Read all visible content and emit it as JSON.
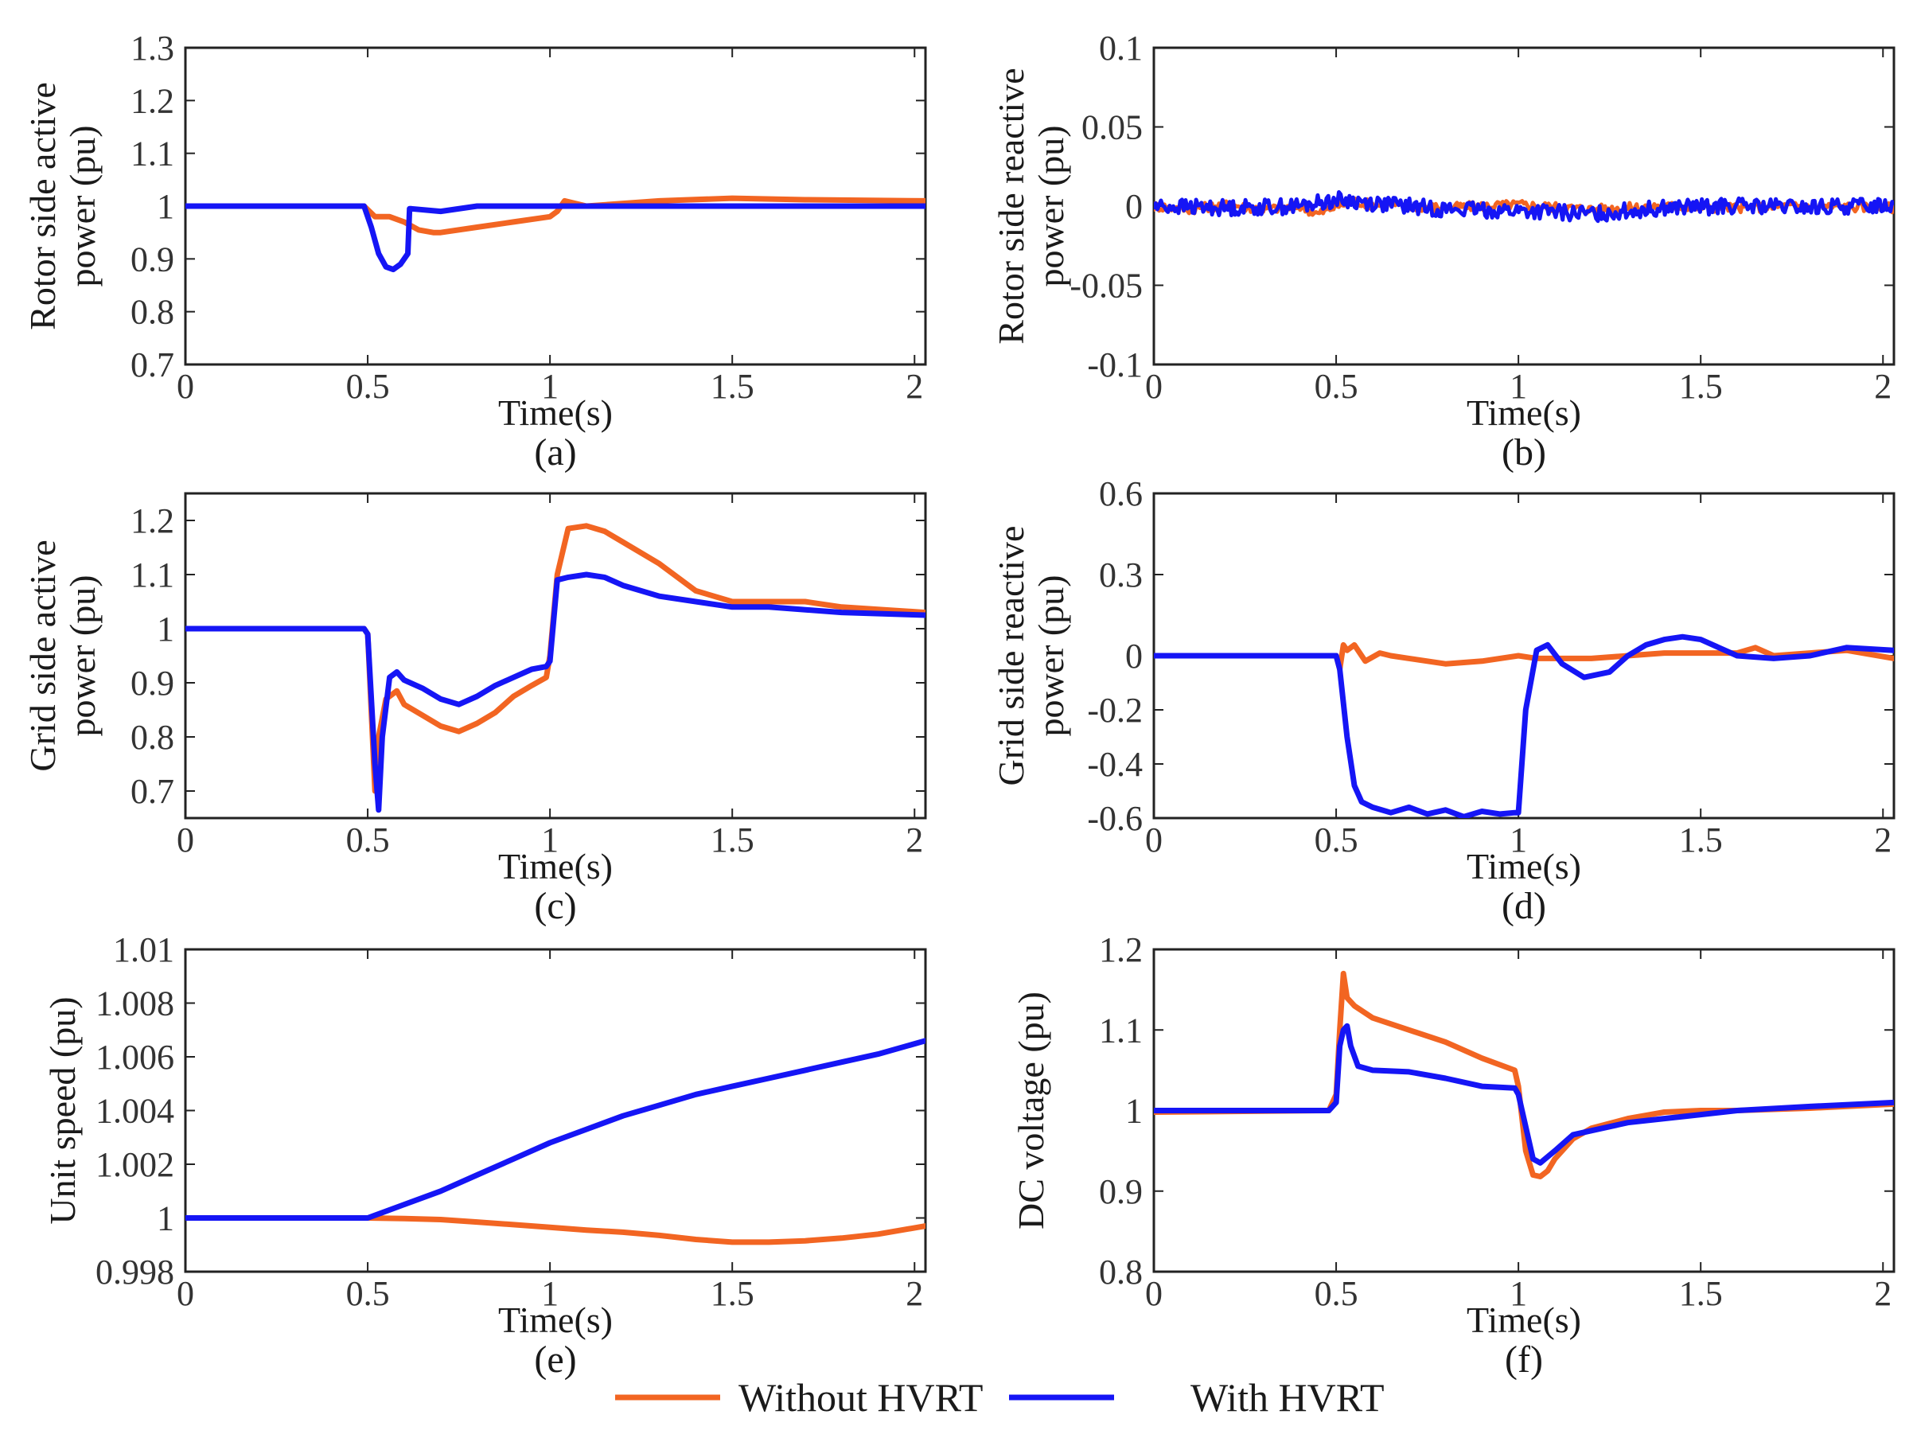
{
  "colors": {
    "without": "#F26522",
    "with": "#1515F5",
    "axis": "#222222"
  },
  "legend": {
    "without_label": "Without HVRT",
    "with_label": "With HVRT"
  },
  "chart_data": [
    {
      "id": "a",
      "type": "line",
      "caption": "(a)",
      "xlabel": "Time(s)",
      "ylabel_lines": [
        "Rotor side active",
        "power (pu)"
      ],
      "xlim": [
        0,
        2.03
      ],
      "ylim": [
        0.7,
        1.3
      ],
      "xticks": [
        0,
        0.5,
        1,
        1.5,
        2
      ],
      "xtick_labels": [
        "0",
        "0.5",
        "1",
        "1.5",
        "2"
      ],
      "yticks": [
        0.7,
        0.8,
        0.9,
        1,
        1.1,
        1.2,
        1.3
      ],
      "ytick_labels": [
        "0.7",
        "0.8",
        "0.9",
        "1",
        "1.1",
        "1.2",
        "1.3"
      ],
      "series": [
        {
          "name": "Without HVRT",
          "x": [
            0,
            0.49,
            0.52,
            0.56,
            0.6,
            0.64,
            0.68,
            0.7,
            0.8,
            0.9,
            1.0,
            1.02,
            1.04,
            1.1,
            1.3,
            1.5,
            1.7,
            2.03
          ],
          "y": [
            1.0,
            1.0,
            0.98,
            0.98,
            0.97,
            0.955,
            0.95,
            0.95,
            0.96,
            0.97,
            0.98,
            0.99,
            1.01,
            1.0,
            1.01,
            1.015,
            1.012,
            1.01
          ]
        },
        {
          "name": "With HVRT",
          "x": [
            0,
            0.49,
            0.51,
            0.53,
            0.55,
            0.57,
            0.59,
            0.61,
            0.615,
            0.62,
            0.7,
            0.8,
            1.0,
            1.5,
            2.03
          ],
          "y": [
            1.0,
            1.0,
            0.96,
            0.91,
            0.885,
            0.88,
            0.89,
            0.91,
            0.995,
            0.995,
            0.99,
            1.0,
            1.0,
            1.0,
            1.0
          ]
        }
      ]
    },
    {
      "id": "b",
      "type": "line",
      "caption": "(b)",
      "xlabel": "Time(s)",
      "ylabel_lines": [
        "Rotor side reactive",
        "power (pu)"
      ],
      "xlim": [
        0,
        2.03
      ],
      "ylim": [
        -0.1,
        0.1
      ],
      "xticks": [
        0,
        0.5,
        1,
        1.5,
        2
      ],
      "xtick_labels": [
        "0",
        "0.5",
        "1",
        "1.5",
        "2"
      ],
      "yticks": [
        -0.1,
        -0.05,
        0,
        0.05,
        0.1
      ],
      "ytick_labels": [
        "-0.1",
        "-0.05",
        "0",
        "0.05",
        "0.1"
      ],
      "series": [
        {
          "name": "Without HVRT",
          "x": [
            0,
            0.1,
            0.2,
            0.3,
            0.4,
            0.45,
            0.5,
            0.55,
            0.6,
            0.8,
            1.0,
            1.2,
            1.4,
            1.6,
            1.8,
            2.03
          ],
          "y": [
            0.0,
            -0.002,
            0.001,
            -0.002,
            0.0,
            -0.005,
            0.0,
            0.003,
            0.001,
            -0.001,
            0.001,
            -0.002,
            0.0,
            -0.001,
            0.0,
            -0.001
          ],
          "noise": 0.003
        },
        {
          "name": "With HVRT",
          "x": [
            0,
            0.2,
            0.4,
            0.5,
            0.6,
            0.8,
            1.0,
            1.2,
            1.4,
            1.6,
            1.8,
            2.03
          ],
          "y": [
            0.0,
            -0.001,
            0.0,
            0.004,
            0.002,
            -0.002,
            -0.003,
            -0.005,
            -0.001,
            0.0,
            -0.001,
            0.001
          ],
          "noise": 0.005
        }
      ]
    },
    {
      "id": "c",
      "type": "line",
      "caption": "(c)",
      "xlabel": "Time(s)",
      "ylabel_lines": [
        "Grid side active",
        "power (pu)"
      ],
      "xlim": [
        0,
        2.03
      ],
      "ylim": [
        0.65,
        1.25
      ],
      "xticks": [
        0,
        0.5,
        1,
        1.5,
        2
      ],
      "xtick_labels": [
        "0",
        "0.5",
        "1",
        "1.5",
        "2"
      ],
      "yticks": [
        0.7,
        0.8,
        0.9,
        1,
        1.1,
        1.2
      ],
      "ytick_labels": [
        "0.7",
        "0.8",
        "0.9",
        "1",
        "1.1",
        "1.2"
      ],
      "series": [
        {
          "name": "Without HVRT",
          "x": [
            0,
            0.49,
            0.5,
            0.52,
            0.53,
            0.55,
            0.58,
            0.6,
            0.65,
            0.7,
            0.75,
            0.8,
            0.85,
            0.9,
            0.95,
            0.99,
            1.0,
            1.02,
            1.05,
            1.1,
            1.15,
            1.2,
            1.3,
            1.4,
            1.5,
            1.6,
            1.7,
            1.8,
            2.03
          ],
          "y": [
            1.0,
            1.0,
            0.99,
            0.7,
            0.8,
            0.87,
            0.885,
            0.86,
            0.84,
            0.82,
            0.81,
            0.825,
            0.845,
            0.875,
            0.895,
            0.91,
            0.95,
            1.1,
            1.185,
            1.19,
            1.18,
            1.16,
            1.12,
            1.07,
            1.05,
            1.05,
            1.05,
            1.04,
            1.03
          ]
        },
        {
          "name": "With HVRT",
          "x": [
            0,
            0.49,
            0.5,
            0.52,
            0.53,
            0.54,
            0.56,
            0.58,
            0.6,
            0.65,
            0.7,
            0.75,
            0.8,
            0.85,
            0.9,
            0.95,
            0.99,
            1.0,
            1.02,
            1.05,
            1.1,
            1.15,
            1.2,
            1.3,
            1.4,
            1.5,
            1.6,
            1.8,
            2.03
          ],
          "y": [
            1.0,
            1.0,
            0.99,
            0.75,
            0.665,
            0.8,
            0.91,
            0.92,
            0.905,
            0.89,
            0.87,
            0.86,
            0.875,
            0.895,
            0.91,
            0.925,
            0.93,
            0.94,
            1.09,
            1.095,
            1.1,
            1.095,
            1.08,
            1.06,
            1.05,
            1.04,
            1.04,
            1.03,
            1.025
          ]
        }
      ]
    },
    {
      "id": "d",
      "type": "line",
      "caption": "(d)",
      "xlabel": "Time(s)",
      "ylabel_lines": [
        "Grid side reactive",
        "power (pu)"
      ],
      "xlim": [
        0,
        2.03
      ],
      "ylim": [
        -0.6,
        0.6
      ],
      "xticks": [
        0,
        0.5,
        1,
        1.5,
        2
      ],
      "xtick_labels": [
        "0",
        "0.5",
        "1",
        "1.5",
        "2"
      ],
      "yticks": [
        -0.6,
        -0.4,
        -0.2,
        0,
        0.3,
        0.6
      ],
      "ytick_labels": [
        "-0.6",
        "-0.4",
        "-0.2",
        "0",
        "0.3",
        "0.6"
      ],
      "series": [
        {
          "name": "Without HVRT",
          "x": [
            0,
            0.5,
            0.51,
            0.52,
            0.53,
            0.55,
            0.58,
            0.62,
            0.65,
            0.7,
            0.8,
            0.9,
            1.0,
            1.05,
            1.2,
            1.4,
            1.6,
            1.65,
            1.7,
            1.8,
            1.9,
            2.03
          ],
          "y": [
            0.0,
            0.0,
            -0.05,
            0.04,
            0.02,
            0.04,
            -0.02,
            0.01,
            0.0,
            -0.01,
            -0.03,
            -0.02,
            0.0,
            -0.01,
            -0.01,
            0.01,
            0.01,
            0.03,
            0.0,
            0.01,
            0.02,
            -0.01
          ]
        },
        {
          "name": "With HVRT",
          "x": [
            0,
            0.5,
            0.51,
            0.53,
            0.55,
            0.57,
            0.6,
            0.65,
            0.7,
            0.75,
            0.8,
            0.85,
            0.9,
            0.95,
            0.99,
            1.0,
            1.02,
            1.05,
            1.08,
            1.12,
            1.18,
            1.25,
            1.3,
            1.35,
            1.4,
            1.45,
            1.5,
            1.55,
            1.6,
            1.7,
            1.8,
            1.9,
            2.03
          ],
          "y": [
            0.0,
            0.0,
            -0.05,
            -0.3,
            -0.48,
            -0.54,
            -0.56,
            -0.58,
            -0.56,
            -0.585,
            -0.57,
            -0.595,
            -0.575,
            -0.585,
            -0.58,
            -0.58,
            -0.2,
            0.02,
            0.04,
            -0.03,
            -0.08,
            -0.06,
            0.0,
            0.04,
            0.06,
            0.07,
            0.06,
            0.03,
            0.0,
            -0.01,
            0.0,
            0.03,
            0.02
          ]
        }
      ]
    },
    {
      "id": "e",
      "type": "line",
      "caption": "(e)",
      "xlabel": "Time(s)",
      "ylabel_lines": [
        "Unit speed (pu)"
      ],
      "xlim": [
        0,
        2.03
      ],
      "ylim": [
        0.998,
        1.01
      ],
      "xticks": [
        0,
        0.5,
        1,
        1.5,
        2
      ],
      "xtick_labels": [
        "0",
        "0.5",
        "1",
        "1.5",
        "2"
      ],
      "yticks": [
        0.998,
        1,
        1.002,
        1.004,
        1.006,
        1.008,
        1.01
      ],
      "ytick_labels": [
        "0.998",
        "1",
        "1.002",
        "1.004",
        "1.006",
        "1.008",
        "1.01"
      ],
      "series": [
        {
          "name": "Without HVRT",
          "x": [
            0,
            0.5,
            0.6,
            0.7,
            0.8,
            0.9,
            1.0,
            1.1,
            1.2,
            1.3,
            1.4,
            1.5,
            1.6,
            1.7,
            1.8,
            1.9,
            2.03
          ],
          "y": [
            1.0,
            1.0,
            0.99998,
            0.99994,
            0.99985,
            0.99975,
            0.99965,
            0.99955,
            0.99947,
            0.99935,
            0.9992,
            0.9991,
            0.9991,
            0.99915,
            0.99925,
            0.9994,
            0.9997
          ]
        },
        {
          "name": "With HVRT",
          "x": [
            0,
            0.5,
            0.6,
            0.7,
            0.8,
            0.9,
            1.0,
            1.1,
            1.2,
            1.3,
            1.4,
            1.5,
            1.6,
            1.7,
            1.8,
            1.9,
            2.03
          ],
          "y": [
            1.0,
            1.0,
            1.0005,
            1.001,
            1.0016,
            1.0022,
            1.0028,
            1.0033,
            1.0038,
            1.0042,
            1.0046,
            1.0049,
            1.0052,
            1.0055,
            1.0058,
            1.0061,
            1.0066
          ]
        }
      ]
    },
    {
      "id": "f",
      "type": "line",
      "caption": "(f)",
      "xlabel": "Time(s)",
      "ylabel_lines": [
        "DC voltage (pu)"
      ],
      "xlim": [
        0,
        2.03
      ],
      "ylim": [
        0.8,
        1.2
      ],
      "xticks": [
        0,
        0.5,
        1,
        1.5,
        2
      ],
      "xtick_labels": [
        "0",
        "0.5",
        "1",
        "1.5",
        "2"
      ],
      "yticks": [
        0.8,
        0.9,
        1,
        1.1,
        1.2
      ],
      "ytick_labels": [
        "0.8",
        "0.9",
        "1",
        "1.1",
        "1.2"
      ],
      "series": [
        {
          "name": "Without HVRT",
          "x": [
            0,
            0.48,
            0.5,
            0.51,
            0.52,
            0.53,
            0.55,
            0.6,
            0.7,
            0.8,
            0.9,
            0.99,
            1.0,
            1.02,
            1.04,
            1.06,
            1.08,
            1.1,
            1.15,
            1.2,
            1.3,
            1.4,
            1.5,
            1.6,
            1.8,
            2.03
          ],
          "y": [
            0.998,
            1.0,
            1.02,
            1.1,
            1.17,
            1.14,
            1.13,
            1.115,
            1.1,
            1.085,
            1.065,
            1.05,
            1.03,
            0.95,
            0.92,
            0.918,
            0.925,
            0.94,
            0.965,
            0.978,
            0.99,
            0.998,
            1.0,
            1.0,
            1.003,
            1.008
          ]
        },
        {
          "name": "With HVRT",
          "x": [
            0,
            0.48,
            0.5,
            0.51,
            0.52,
            0.53,
            0.54,
            0.56,
            0.6,
            0.7,
            0.8,
            0.9,
            0.99,
            1.0,
            1.02,
            1.04,
            1.06,
            1.1,
            1.15,
            1.2,
            1.3,
            1.4,
            1.5,
            1.6,
            1.8,
            2.03
          ],
          "y": [
            1.0,
            1.0,
            1.01,
            1.08,
            1.1,
            1.105,
            1.08,
            1.055,
            1.05,
            1.048,
            1.04,
            1.03,
            1.028,
            1.02,
            0.98,
            0.94,
            0.935,
            0.95,
            0.97,
            0.975,
            0.985,
            0.99,
            0.995,
            1.0,
            1.005,
            1.01
          ]
        }
      ]
    }
  ]
}
